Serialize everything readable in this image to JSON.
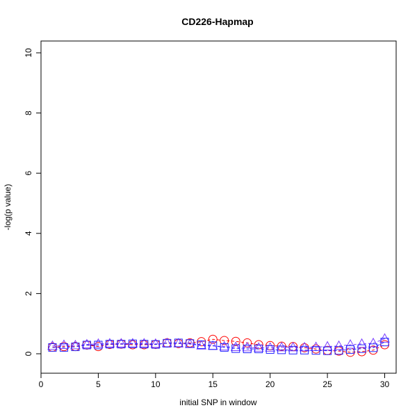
{
  "chart_data": {
    "type": "scatter",
    "title": "CD226-Hapmap",
    "xlabel": "initial SNP in window",
    "ylabel": "-log(p value)",
    "xlim": [
      0,
      31
    ],
    "ylim": [
      0,
      10
    ],
    "xticks": [
      0,
      5,
      10,
      15,
      20,
      25,
      30
    ],
    "yticks": [
      0,
      2,
      4,
      6,
      8,
      10
    ],
    "grid": false,
    "x": [
      1,
      2,
      3,
      4,
      5,
      6,
      7,
      8,
      9,
      10,
      11,
      12,
      13,
      14,
      15,
      16,
      17,
      18,
      19,
      20,
      21,
      22,
      23,
      24,
      25,
      26,
      27,
      28,
      29,
      30
    ],
    "series": [
      {
        "marker": "circle",
        "color": "#ff0000",
        "values": [
          0.22,
          0.24,
          0.24,
          0.29,
          0.24,
          0.31,
          0.32,
          0.3,
          0.3,
          0.31,
          0.36,
          0.34,
          0.36,
          0.4,
          0.48,
          0.44,
          0.41,
          0.36,
          0.3,
          0.27,
          0.25,
          0.24,
          0.2,
          0.16,
          0.11,
          0.09,
          0.05,
          0.07,
          0.12,
          0.3
        ]
      },
      {
        "marker": "triangle",
        "color": "#7b3fff",
        "values": [
          0.26,
          0.29,
          0.28,
          0.31,
          0.33,
          0.34,
          0.34,
          0.34,
          0.34,
          0.33,
          0.35,
          0.34,
          0.32,
          0.27,
          0.26,
          0.24,
          0.22,
          0.21,
          0.2,
          0.2,
          0.21,
          0.21,
          0.21,
          0.22,
          0.24,
          0.26,
          0.3,
          0.33,
          0.35,
          0.5
        ]
      },
      {
        "marker": "square",
        "color": "#2020ff",
        "values": [
          0.21,
          0.21,
          0.23,
          0.29,
          0.29,
          0.32,
          0.32,
          0.33,
          0.32,
          0.31,
          0.35,
          0.36,
          0.34,
          0.3,
          0.27,
          0.21,
          0.17,
          0.16,
          0.16,
          0.14,
          0.13,
          0.12,
          0.12,
          0.11,
          0.1,
          0.11,
          0.14,
          0.17,
          0.2,
          0.39
        ]
      }
    ]
  }
}
